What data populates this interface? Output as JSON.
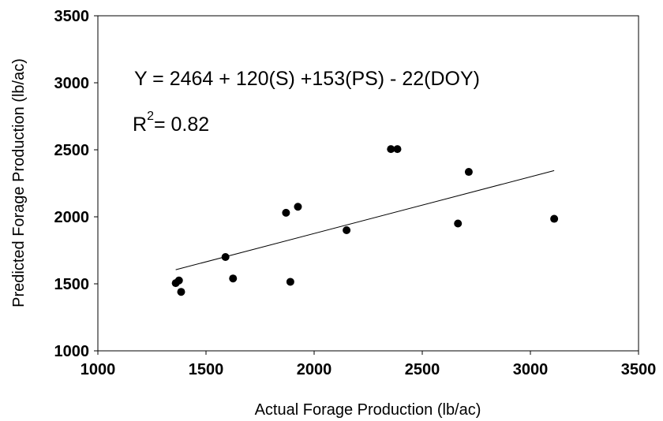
{
  "chart_data": {
    "type": "scatter",
    "title": "",
    "xlabel": "Actual Forage Production (lb/ac)",
    "ylabel": "Predicted Forage Production (lb/ac)",
    "xlim": [
      1000,
      3500
    ],
    "ylim": [
      1000,
      3500
    ],
    "x_ticks": [
      "1000",
      "1500",
      "2000",
      "2500",
      "3000",
      "3500"
    ],
    "y_ticks": [
      "1000",
      "1500",
      "2000",
      "2500",
      "3000",
      "3500"
    ],
    "grid": false,
    "legend": "none",
    "annotations": {
      "equation": "Y = 2464 + 120(S) +153(PS) - 22(DOY)",
      "r2_label": "R",
      "r2_exponent": "2",
      "r2_value": "= 0.82"
    },
    "series": [
      {
        "values": [
          {
            "x": 1360,
            "y": 1505
          },
          {
            "x": 1375,
            "y": 1525
          },
          {
            "x": 1385,
            "y": 1440
          },
          {
            "x": 1590,
            "y": 1700
          },
          {
            "x": 1625,
            "y": 1540
          },
          {
            "x": 1870,
            "y": 2030
          },
          {
            "x": 1890,
            "y": 1515
          },
          {
            "x": 1925,
            "y": 2075
          },
          {
            "x": 2150,
            "y": 1900
          },
          {
            "x": 2355,
            "y": 2505
          },
          {
            "x": 2385,
            "y": 2505
          },
          {
            "x": 2665,
            "y": 1950
          },
          {
            "x": 2715,
            "y": 2335
          },
          {
            "x": 3110,
            "y": 1985
          }
        ]
      }
    ],
    "trendline": {
      "x": [
        1360,
        3110
      ],
      "y": [
        1605,
        2345
      ]
    },
    "colors": {
      "marker": "#000000",
      "axis": "#000000",
      "line": "#000000"
    }
  }
}
